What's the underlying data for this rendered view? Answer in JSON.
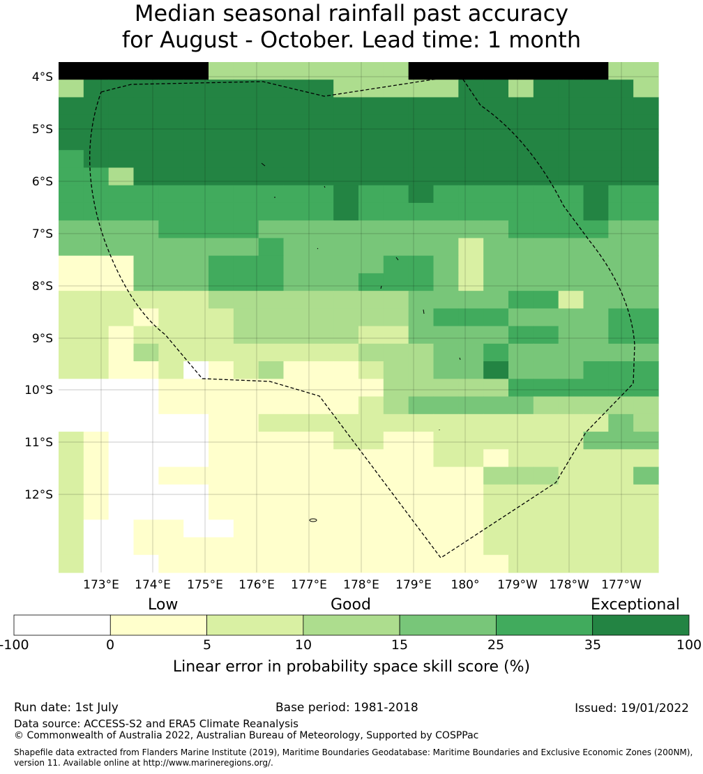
{
  "title": {
    "line1": "Median seasonal rainfall past accuracy",
    "line2": "for August - October. Lead time: 1 month"
  },
  "map": {
    "lat_labels": [
      "4°S",
      "5°S",
      "6°S",
      "7°S",
      "8°S",
      "9°S",
      "10°S",
      "11°S",
      "12°S"
    ],
    "lon_labels": [
      "173°E",
      "174°E",
      "175°E",
      "176°E",
      "177°E",
      "178°E",
      "179°E",
      "180°",
      "179°W",
      "178°W",
      "177°W"
    ],
    "legend_colors": [
      "#ffffff",
      "#ffffcc",
      "#d9f0a3",
      "#addd8e",
      "#78c679",
      "#41ab5d",
      "#238443"
    ],
    "grid_rows": [
      "777777333333337777777733",
      "366666666663333366366663",
      "666666666666666666666666",
      "666666666666666666666666",
      "666666666666666666666666",
      "566666666666666666666666",
      "553666666666666666666666",
      "555555555556556555555655",
      "555555555556555555555655",
      "444455554444444444555544",
      "444444445444444424444444",
      "111444555444455424444444",
      "111444555444555424444444",
      "222222333333334444552444",
      "222122233333334555444455",
      "221222233333224444554455",
      "221322222222333445444444",
      "221120123111233446444555",
      "000011111111133333555555",
      "000011111111234444433333",
      "000000112222222222222243",
      "210000111112211222222444",
      "210000111111111221222222",
      "210011111111111113332224",
      "210000111111111112222222",
      "210000111111111112222222",
      "200110011111111112222222",
      "200111111111111112222222",
      "200011111111111111222222"
    ]
  },
  "colorbar": {
    "category_low": "Low",
    "category_good": "Good",
    "category_exceptional": "Exceptional",
    "ticks": [
      "-100",
      "0",
      "5",
      "10",
      "15",
      "25",
      "35",
      "100"
    ],
    "label": "Linear error in probability space skill score (%)"
  },
  "footer": {
    "run_date": "Run date: 1st July",
    "base_period": "Base period: 1981-2018",
    "issued": "Issued: 19/01/2022",
    "data_source": "Data source: ACCESS-S2 and ERA5 Climate Reanalysis",
    "copyright": "© Commonwealth of Australia 2022, Australian Bureau of Meteorology, Supported by COSPPac",
    "shapefile_line1": "Shapefile data extracted from Flanders Marine Institute (2019), Maritime Boundaries Geodatabase: Maritime Boundaries and Exclusive Economic Zones (200NM),",
    "shapefile_line2": "version 11. Available online at http://www.marineregions.org/."
  }
}
